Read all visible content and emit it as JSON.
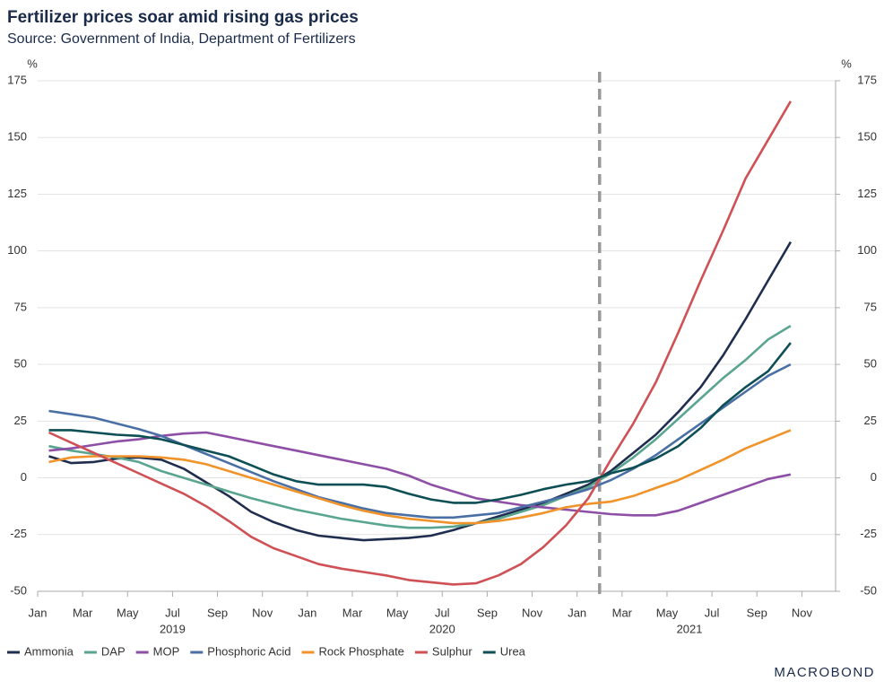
{
  "chart_data": {
    "type": "line",
    "title": "Fertilizer prices soar amid rising gas prices",
    "subtitle": "Source: Government of India, Department of Fertilizers",
    "y_unit": "%",
    "y2_unit": "%",
    "x": [
      "2019-01",
      "2019-02",
      "2019-03",
      "2019-04",
      "2019-05",
      "2019-06",
      "2019-07",
      "2019-08",
      "2019-09",
      "2019-10",
      "2019-11",
      "2019-12",
      "2020-01",
      "2020-02",
      "2020-03",
      "2020-04",
      "2020-05",
      "2020-06",
      "2020-07",
      "2020-08",
      "2020-09",
      "2020-10",
      "2020-11",
      "2020-12",
      "2021-01",
      "2021-02",
      "2021-03",
      "2021-04",
      "2021-05",
      "2021-06",
      "2021-07",
      "2021-08",
      "2021-09",
      "2021-10"
    ],
    "xticks": [
      {
        "value": "2019-01",
        "label": "Jan"
      },
      {
        "value": "2019-03",
        "label": "Mar"
      },
      {
        "value": "2019-05",
        "label": "May"
      },
      {
        "value": "2019-07",
        "label": "Jul"
      },
      {
        "value": "2019-09",
        "label": "Sep"
      },
      {
        "value": "2019-11",
        "label": "Nov"
      },
      {
        "value": "2020-01",
        "label": "Jan"
      },
      {
        "value": "2020-03",
        "label": "Mar"
      },
      {
        "value": "2020-05",
        "label": "May"
      },
      {
        "value": "2020-07",
        "label": "Jul"
      },
      {
        "value": "2020-09",
        "label": "Sep"
      },
      {
        "value": "2020-11",
        "label": "Nov"
      },
      {
        "value": "2021-01",
        "label": "Jan"
      },
      {
        "value": "2021-03",
        "label": "Mar"
      },
      {
        "value": "2021-05",
        "label": "May"
      },
      {
        "value": "2021-07",
        "label": "Jul"
      },
      {
        "value": "2021-09",
        "label": "Sep"
      },
      {
        "value": "2021-11",
        "label": "Nov"
      }
    ],
    "xyears": [
      {
        "value": "2019-07",
        "label": "2019"
      },
      {
        "value": "2020-07",
        "label": "2020"
      },
      {
        "value": "2021-06",
        "label": "2021"
      }
    ],
    "xlim": [
      "2019-01",
      "2021-12"
    ],
    "vline": "2021-02",
    "ylim": [
      -50,
      175
    ],
    "yticks": [
      -50,
      -25,
      0,
      25,
      50,
      75,
      100,
      125,
      150,
      175
    ],
    "y2lim": [
      -50,
      175
    ],
    "y2ticks": [
      -50,
      -25,
      0,
      25,
      50,
      75,
      100,
      125,
      150,
      175
    ],
    "grid": true,
    "legend": "bottom",
    "series": [
      {
        "name": "Ammonia",
        "color": "#1f2d4e",
        "values": [
          9.5,
          6.5,
          7,
          8.5,
          9,
          8,
          4,
          -2,
          -8,
          -15,
          -19.5,
          -23,
          -25.5,
          -26.5,
          -27.5,
          -27,
          -26.5,
          -25.5,
          -23,
          -20,
          -17,
          -14,
          -11,
          -7,
          -3,
          3,
          11,
          19,
          29,
          40,
          54,
          70,
          87,
          104
        ]
      },
      {
        "name": "DAP",
        "color": "#5aa58f",
        "values": [
          14,
          12,
          10.5,
          9,
          7,
          3,
          0,
          -3,
          -6,
          -9,
          -11.5,
          -14,
          -16,
          -18,
          -19.5,
          -21,
          -22,
          -22,
          -21.5,
          -20,
          -18,
          -15,
          -12,
          -8,
          -4,
          2,
          9,
          17,
          26,
          35,
          44,
          52,
          61,
          67
        ]
      },
      {
        "name": "MOP",
        "color": "#8e4fa6",
        "values": [
          12,
          13,
          14.5,
          16,
          17,
          18.5,
          19.5,
          20,
          18,
          16,
          14,
          12,
          10,
          8,
          6,
          4,
          1,
          -3,
          -6,
          -9,
          -10.5,
          -12,
          -13,
          -14,
          -15,
          -16,
          -16.5,
          -16.5,
          -14.5,
          -11,
          -7.5,
          -4,
          -0.5,
          1.5
        ]
      },
      {
        "name": "Phosphoric Acid",
        "color": "#4a6fa5",
        "values": [
          29.5,
          28,
          26.5,
          24,
          21.5,
          18.5,
          14.5,
          10.5,
          6.5,
          2.5,
          -1.5,
          -5,
          -8.5,
          -11,
          -13.5,
          -15.5,
          -16.5,
          -17.5,
          -17.5,
          -16.5,
          -15.5,
          -13,
          -10.5,
          -8,
          -5,
          -1,
          4,
          10,
          17,
          24,
          31,
          38,
          45,
          50
        ]
      },
      {
        "name": "Rock Phosphate",
        "color": "#f0932b",
        "values": [
          7,
          9,
          9.5,
          9.5,
          9.5,
          9,
          8,
          6,
          3,
          0,
          -3,
          -6,
          -9,
          -12,
          -14.5,
          -16.5,
          -18,
          -19,
          -20,
          -20,
          -19,
          -17.5,
          -15.5,
          -13,
          -11.5,
          -10.5,
          -8,
          -4.5,
          -1,
          3.5,
          8,
          13,
          17,
          21
        ]
      },
      {
        "name": "Sulphur",
        "color": "#cf5155",
        "values": [
          20,
          15.5,
          11,
          6.5,
          2,
          -2.5,
          -7,
          -12.5,
          -19,
          -26,
          -31,
          -34.5,
          -38,
          -40,
          -41.5,
          -43,
          -45,
          -46,
          -47,
          -46.5,
          -43,
          -38,
          -30.5,
          -21,
          -9,
          8,
          24,
          42,
          64,
          87,
          109,
          132,
          149,
          166
        ]
      },
      {
        "name": "Urea",
        "color": "#0d4f55",
        "values": [
          21,
          21,
          20,
          19,
          18.5,
          17,
          14.5,
          12,
          9.5,
          5.5,
          1.5,
          -1.5,
          -3,
          -3,
          -3,
          -4,
          -7,
          -9.5,
          -11,
          -11,
          -9.5,
          -7.5,
          -5,
          -3,
          -1.5,
          2,
          4.5,
          8.5,
          14,
          22,
          32,
          40,
          47,
          59.5
        ]
      }
    ],
    "logo": "MACROBOND"
  }
}
